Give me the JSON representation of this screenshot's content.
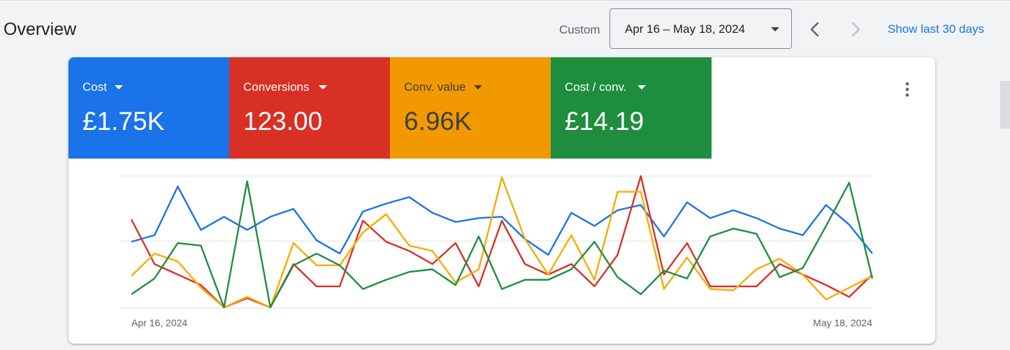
{
  "header": {
    "title": "Overview",
    "range_type_label": "Custom",
    "date_range": "Apr 16 – May 18, 2024",
    "show_last_label": "Show last 30 days"
  },
  "metrics": [
    {
      "label": "Cost",
      "value": "£1.75K",
      "color": "#1a73e8",
      "text_color": "#ffffff"
    },
    {
      "label": "Conversions",
      "value": "123.00",
      "color": "#d93025",
      "text_color": "#ffffff"
    },
    {
      "label": "Conv. value",
      "value": "6.96K",
      "color": "#f29900",
      "text_color": "#3c4043"
    },
    {
      "label": "Cost / conv.",
      "value": "£14.19",
      "color": "#1e8e3e",
      "text_color": "#ffffff"
    }
  ],
  "chart_data": {
    "type": "line",
    "x_start_label": "Apr 16, 2024",
    "x_end_label": "May 18, 2024",
    "grid": true,
    "ylim": [
      0,
      100
    ],
    "series": [
      {
        "name": "Cost",
        "color": "#1a73e8",
        "values": [
          50,
          55,
          92,
          59,
          69,
          59,
          69,
          75,
          51,
          41,
          73,
          79,
          84,
          72,
          65,
          68,
          69,
          52,
          40,
          72,
          62,
          74,
          78,
          54,
          80,
          68,
          74,
          68,
          60,
          55,
          78,
          63,
          41
        ]
      },
      {
        "name": "Conversions",
        "color": "#d93025",
        "values": [
          67,
          33,
          25,
          17,
          0,
          7,
          0,
          33,
          16,
          16,
          66,
          50,
          43,
          33,
          49,
          16,
          66,
          33,
          25,
          33,
          16,
          40,
          100,
          25,
          49,
          16,
          16,
          16,
          33,
          25,
          17,
          8,
          25
        ]
      },
      {
        "name": "Conv. value",
        "color": "#f9ab00",
        "values": [
          24,
          41,
          35,
          15,
          0,
          8,
          0,
          49,
          32,
          32,
          57,
          71,
          47,
          43,
          19,
          29,
          99,
          52,
          25,
          55,
          21,
          88,
          88,
          14,
          38,
          14,
          13,
          29,
          37,
          25,
          6,
          15,
          24
        ]
      },
      {
        "name": "Cost / conv.",
        "color": "#1e8e3e",
        "values": [
          10,
          22,
          49,
          47,
          0,
          96,
          0,
          32,
          41,
          32,
          14,
          21,
          27,
          29,
          17,
          54,
          14,
          21,
          21,
          29,
          50,
          23,
          10,
          28,
          22,
          54,
          60,
          56,
          23,
          30,
          62,
          95,
          22
        ]
      }
    ]
  }
}
